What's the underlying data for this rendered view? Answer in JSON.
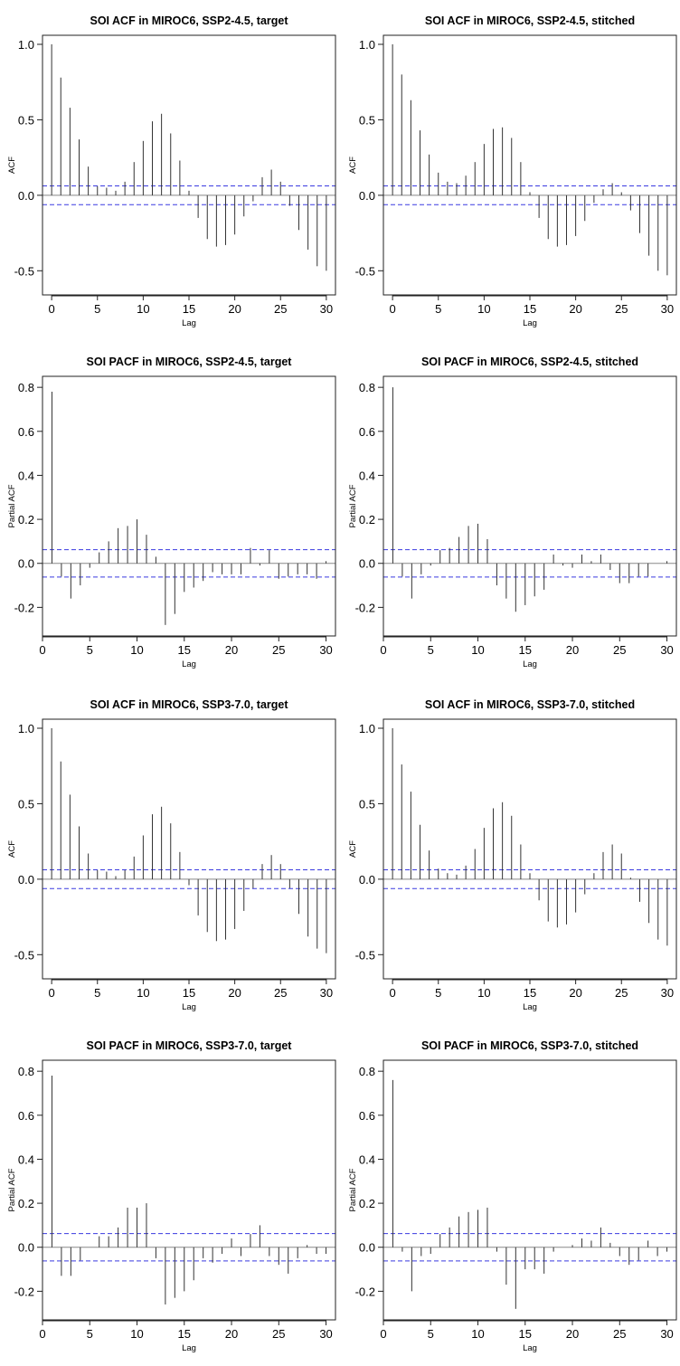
{
  "chart_data": [
    {
      "type": "bar",
      "title": "SOI ACF in MIROC6, SSP2-4.5, target",
      "xlabel": "Lag",
      "ylabel": "ACF",
      "xlim": [
        -1,
        31
      ],
      "ylim": [
        -0.66,
        1.06
      ],
      "xticks": [
        0,
        5,
        10,
        15,
        20,
        25,
        30
      ],
      "yticks": [
        -0.5,
        0.0,
        0.5,
        1.0
      ],
      "ytick_labels": [
        "-0.5",
        "0.0",
        "0.5",
        "1.0"
      ],
      "ci": 0.062,
      "lags": [
        0,
        1,
        2,
        3,
        4,
        5,
        6,
        7,
        8,
        9,
        10,
        11,
        12,
        13,
        14,
        15,
        16,
        17,
        18,
        19,
        20,
        21,
        22,
        23,
        24,
        25,
        26,
        27,
        28,
        29,
        30
      ],
      "values": [
        1.0,
        0.78,
        0.58,
        0.37,
        0.19,
        0.06,
        0.05,
        0.03,
        0.09,
        0.22,
        0.36,
        0.49,
        0.54,
        0.41,
        0.23,
        0.03,
        -0.15,
        -0.29,
        -0.34,
        -0.33,
        -0.26,
        -0.14,
        -0.04,
        0.12,
        0.17,
        0.09,
        -0.07,
        -0.23,
        -0.36,
        -0.47,
        -0.5
      ],
      "grid": false
    },
    {
      "type": "bar",
      "title": "SOI ACF in MIROC6, SSP2-4.5, stitched",
      "xlabel": "Lag",
      "ylabel": "ACF",
      "xlim": [
        -1,
        31
      ],
      "ylim": [
        -0.66,
        1.06
      ],
      "xticks": [
        0,
        5,
        10,
        15,
        20,
        25,
        30
      ],
      "yticks": [
        -0.5,
        0.0,
        0.5,
        1.0
      ],
      "ytick_labels": [
        "-0.5",
        "0.0",
        "0.5",
        "1.0"
      ],
      "ci": 0.062,
      "lags": [
        0,
        1,
        2,
        3,
        4,
        5,
        6,
        7,
        8,
        9,
        10,
        11,
        12,
        13,
        14,
        15,
        16,
        17,
        18,
        19,
        20,
        21,
        22,
        23,
        24,
        25,
        26,
        27,
        28,
        29,
        30
      ],
      "values": [
        1.0,
        0.8,
        0.63,
        0.43,
        0.27,
        0.15,
        0.09,
        0.08,
        0.13,
        0.22,
        0.34,
        0.44,
        0.45,
        0.38,
        0.22,
        0.02,
        -0.15,
        -0.29,
        -0.34,
        -0.33,
        -0.27,
        -0.17,
        -0.05,
        0.04,
        0.08,
        0.02,
        -0.1,
        -0.25,
        -0.4,
        -0.5,
        -0.53
      ],
      "grid": false
    },
    {
      "type": "bar",
      "title": "SOI PACF in MIROC6, SSP2-4.5, target",
      "xlabel": "Lag",
      "ylabel": "Partial ACF",
      "xlim": [
        0,
        31
      ],
      "ylim": [
        -0.33,
        0.85
      ],
      "xticks": [
        0,
        5,
        10,
        15,
        20,
        25,
        30
      ],
      "yticks": [
        -0.2,
        0.0,
        0.2,
        0.4,
        0.6,
        0.8
      ],
      "ytick_labels": [
        "-0.2",
        "0.0",
        "0.2",
        "0.4",
        "0.6",
        "0.8"
      ],
      "ci": 0.062,
      "lags": [
        1,
        2,
        3,
        4,
        5,
        6,
        7,
        8,
        9,
        10,
        11,
        12,
        13,
        14,
        15,
        16,
        17,
        18,
        19,
        20,
        21,
        22,
        23,
        24,
        25,
        26,
        27,
        28,
        29,
        30
      ],
      "values": [
        0.78,
        -0.06,
        -0.16,
        -0.1,
        -0.02,
        0.05,
        0.1,
        0.16,
        0.17,
        0.2,
        0.13,
        0.03,
        -0.28,
        -0.23,
        -0.13,
        -0.11,
        -0.08,
        -0.04,
        -0.05,
        -0.05,
        -0.05,
        0.07,
        -0.01,
        0.06,
        -0.07,
        -0.06,
        -0.05,
        -0.05,
        -0.07,
        0.01
      ],
      "grid": false
    },
    {
      "type": "bar",
      "title": "SOI PACF in MIROC6, SSP2-4.5, stitched",
      "xlabel": "Lag",
      "ylabel": "Partial ACF",
      "xlim": [
        0,
        31
      ],
      "ylim": [
        -0.33,
        0.85
      ],
      "xticks": [
        0,
        5,
        10,
        15,
        20,
        25,
        30
      ],
      "yticks": [
        -0.2,
        0.0,
        0.2,
        0.4,
        0.6,
        0.8
      ],
      "ytick_labels": [
        "-0.2",
        "0.0",
        "0.2",
        "0.4",
        "0.6",
        "0.8"
      ],
      "ci": 0.062,
      "lags": [
        1,
        2,
        3,
        4,
        5,
        6,
        7,
        8,
        9,
        10,
        11,
        12,
        13,
        14,
        15,
        16,
        17,
        18,
        19,
        20,
        21,
        22,
        23,
        24,
        25,
        26,
        27,
        28,
        29,
        30
      ],
      "values": [
        0.8,
        -0.06,
        -0.16,
        -0.05,
        -0.01,
        0.06,
        0.07,
        0.12,
        0.17,
        0.18,
        0.11,
        -0.1,
        -0.16,
        -0.22,
        -0.19,
        -0.15,
        -0.12,
        0.04,
        -0.01,
        -0.02,
        0.04,
        0.01,
        0.04,
        -0.03,
        -0.09,
        -0.09,
        -0.06,
        -0.06,
        0.0,
        0.01
      ],
      "grid": false
    },
    {
      "type": "bar",
      "title": "SOI ACF in MIROC6, SSP3-7.0, target",
      "xlabel": "Lag",
      "ylabel": "ACF",
      "xlim": [
        -1,
        31
      ],
      "ylim": [
        -0.66,
        1.06
      ],
      "xticks": [
        0,
        5,
        10,
        15,
        20,
        25,
        30
      ],
      "yticks": [
        -0.5,
        0.0,
        0.5,
        1.0
      ],
      "ytick_labels": [
        "-0.5",
        "0.0",
        "0.5",
        "1.0"
      ],
      "ci": 0.062,
      "lags": [
        0,
        1,
        2,
        3,
        4,
        5,
        6,
        7,
        8,
        9,
        10,
        11,
        12,
        13,
        14,
        15,
        16,
        17,
        18,
        19,
        20,
        21,
        22,
        23,
        24,
        25,
        26,
        27,
        28,
        29,
        30
      ],
      "values": [
        1.0,
        0.78,
        0.56,
        0.35,
        0.17,
        0.06,
        0.05,
        0.02,
        0.06,
        0.15,
        0.29,
        0.43,
        0.48,
        0.37,
        0.18,
        -0.04,
        -0.24,
        -0.35,
        -0.41,
        -0.4,
        -0.33,
        -0.21,
        -0.06,
        0.1,
        0.16,
        0.1,
        -0.06,
        -0.23,
        -0.38,
        -0.46,
        -0.49
      ],
      "grid": false
    },
    {
      "type": "bar",
      "title": "SOI ACF in MIROC6, SSP3-7.0, stitched",
      "xlabel": "Lag",
      "ylabel": "ACF",
      "xlim": [
        -1,
        31
      ],
      "ylim": [
        -0.66,
        1.06
      ],
      "xticks": [
        0,
        5,
        10,
        15,
        20,
        25,
        30
      ],
      "yticks": [
        -0.5,
        0.0,
        0.5,
        1.0
      ],
      "ytick_labels": [
        "-0.5",
        "0.0",
        "0.5",
        "1.0"
      ],
      "ci": 0.062,
      "lags": [
        0,
        1,
        2,
        3,
        4,
        5,
        6,
        7,
        8,
        9,
        10,
        11,
        12,
        13,
        14,
        15,
        16,
        17,
        18,
        19,
        20,
        21,
        22,
        23,
        24,
        25,
        26,
        27,
        28,
        29,
        30
      ],
      "values": [
        1.0,
        0.76,
        0.58,
        0.36,
        0.19,
        0.07,
        0.04,
        0.03,
        0.09,
        0.2,
        0.34,
        0.47,
        0.51,
        0.42,
        0.23,
        0.04,
        -0.14,
        -0.28,
        -0.32,
        -0.3,
        -0.22,
        -0.1,
        0.04,
        0.18,
        0.23,
        0.17,
        0.01,
        -0.15,
        -0.29,
        -0.4,
        -0.44
      ],
      "grid": false
    },
    {
      "type": "bar",
      "title": "SOI PACF in MIROC6, SSP3-7.0, target",
      "xlabel": "Lag",
      "ylabel": "Partial ACF",
      "xlim": [
        0,
        31
      ],
      "ylim": [
        -0.33,
        0.85
      ],
      "xticks": [
        0,
        5,
        10,
        15,
        20,
        25,
        30
      ],
      "yticks": [
        -0.2,
        0.0,
        0.2,
        0.4,
        0.6,
        0.8
      ],
      "ytick_labels": [
        "-0.2",
        "0.0",
        "0.2",
        "0.4",
        "0.6",
        "0.8"
      ],
      "ci": 0.062,
      "lags": [
        1,
        2,
        3,
        4,
        5,
        6,
        7,
        8,
        9,
        10,
        11,
        12,
        13,
        14,
        15,
        16,
        17,
        18,
        19,
        20,
        21,
        22,
        23,
        24,
        25,
        26,
        27,
        28,
        29,
        30
      ],
      "values": [
        0.78,
        -0.13,
        -0.13,
        -0.06,
        0.0,
        0.05,
        0.05,
        0.09,
        0.18,
        0.18,
        0.2,
        -0.05,
        -0.26,
        -0.23,
        -0.2,
        -0.15,
        -0.05,
        -0.07,
        -0.03,
        0.04,
        -0.04,
        0.06,
        0.1,
        -0.04,
        -0.08,
        -0.12,
        -0.05,
        0.01,
        -0.03,
        -0.03
      ],
      "grid": false
    },
    {
      "type": "bar",
      "title": "SOI PACF in MIROC6, SSP3-7.0, stitched",
      "xlabel": "Lag",
      "ylabel": "Partial ACF",
      "xlim": [
        0,
        31
      ],
      "ylim": [
        -0.33,
        0.85
      ],
      "xticks": [
        0,
        5,
        10,
        15,
        20,
        25,
        30
      ],
      "yticks": [
        -0.2,
        0.0,
        0.2,
        0.4,
        0.6,
        0.8
      ],
      "ytick_labels": [
        "-0.2",
        "0.0",
        "0.2",
        "0.4",
        "0.6",
        "0.8"
      ],
      "ci": 0.062,
      "lags": [
        1,
        2,
        3,
        4,
        5,
        6,
        7,
        8,
        9,
        10,
        11,
        12,
        13,
        14,
        15,
        16,
        17,
        18,
        19,
        20,
        21,
        22,
        23,
        24,
        25,
        26,
        27,
        28,
        29,
        30
      ],
      "values": [
        0.76,
        -0.02,
        -0.2,
        -0.04,
        -0.03,
        0.06,
        0.09,
        0.14,
        0.16,
        0.17,
        0.18,
        -0.02,
        -0.17,
        -0.28,
        -0.1,
        -0.1,
        -0.12,
        -0.02,
        0.0,
        0.01,
        0.04,
        0.03,
        0.09,
        0.02,
        -0.04,
        -0.08,
        -0.06,
        0.03,
        -0.04,
        -0.02
      ],
      "grid": false
    }
  ],
  "colors": {
    "bar": "#333333",
    "zero_line": "#888888",
    "ci_line": "#3a3ae0",
    "frame": "#222222"
  }
}
